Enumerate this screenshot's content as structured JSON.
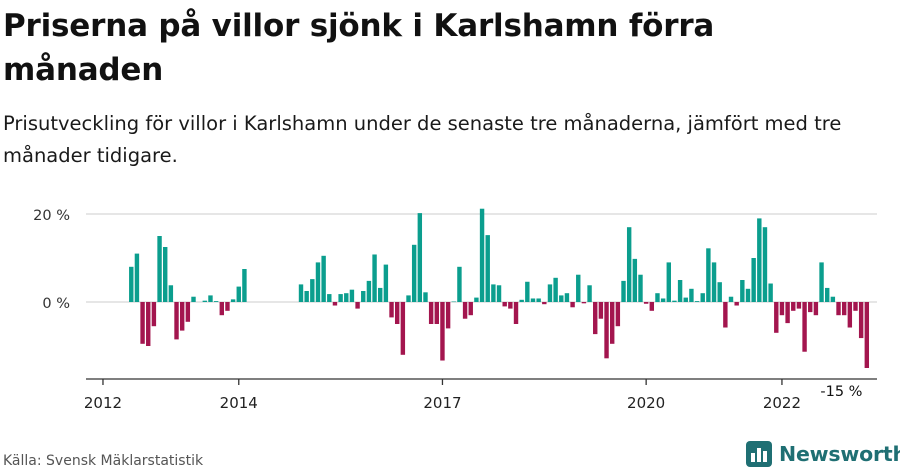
{
  "header": {
    "title": "Priserna på villor sjönk i Karlshamn förra månaden",
    "subtitle": "Prisutveckling för villor i Karlshamn under de senaste tre månaderna, jämfört med tre månader tidigare."
  },
  "footer": {
    "source": "Källa: Svensk Mäklarstatistik",
    "brand": "Newsworthy"
  },
  "colors": {
    "positive": "#0b9e8e",
    "negative": "#a3154e",
    "grid": "#dddddd",
    "axis": "#333333",
    "brand": "#1f6f73"
  },
  "icons": {
    "brand_logo": "bar-chart-icon"
  },
  "chart_data": {
    "type": "bar",
    "ylim": [
      -18,
      22
    ],
    "yticks": [
      {
        "value": 0,
        "label": "0 %"
      },
      {
        "value": 20,
        "label": "20 %"
      }
    ],
    "xticks": [
      {
        "x": 2012.0,
        "label": "2012"
      },
      {
        "x": 2014.0,
        "label": "2014"
      },
      {
        "x": 2017.0,
        "label": "2017"
      },
      {
        "x": 2020.0,
        "label": "2020"
      },
      {
        "x": 2022.0,
        "label": "2022"
      }
    ],
    "xlim": [
      2011.75,
      2023.4
    ],
    "annotation": {
      "x": 2022.92,
      "value": -15,
      "label": "-15 %"
    },
    "start": "2012-06",
    "interval_months": 1,
    "values": [
      8,
      11,
      -9.5,
      -10,
      -5.5,
      15,
      12.5,
      3.8,
      -8.5,
      -6.5,
      -4.5,
      1.2,
      null,
      0.3,
      1.5,
      0.2,
      -3,
      -2,
      0.6,
      3.5,
      7.5,
      null,
      null,
      null,
      null,
      null,
      null,
      null,
      null,
      null,
      4,
      2.5,
      5.2,
      9,
      10.5,
      1.8,
      -0.8,
      1.8,
      2,
      2.8,
      -1.5,
      2.5,
      4.8,
      10.8,
      3.2,
      8.5,
      -3.5,
      -5,
      -12,
      1.5,
      13,
      20.2,
      2.2,
      -5,
      -5,
      -13.3,
      -6,
      0.1,
      8,
      -3.8,
      -3,
      1,
      21.2,
      15.2,
      4,
      3.8,
      -1,
      -1.5,
      -5,
      0.5,
      4.6,
      0.8,
      0.8,
      -0.5,
      4,
      5.5,
      1.5,
      2,
      -1.2,
      6.2,
      -0.3,
      3.8,
      -7.3,
      -3.8,
      -12.8,
      -9.5,
      -5.5,
      4.8,
      17,
      9.8,
      6.2,
      -0.4,
      -2,
      2,
      0.8,
      9,
      0.3,
      5,
      1,
      3,
      0.2,
      2,
      12.2,
      9,
      4.5,
      -5.8,
      1.2,
      -0.8,
      5,
      3,
      10,
      19,
      17,
      4.2,
      -7,
      -3,
      -4.8,
      -2,
      -1.5,
      -11.3,
      -2.3,
      -3,
      9,
      3.2,
      1.2,
      -3,
      -3,
      -5.8,
      -2,
      -8.2,
      -15
    ]
  }
}
